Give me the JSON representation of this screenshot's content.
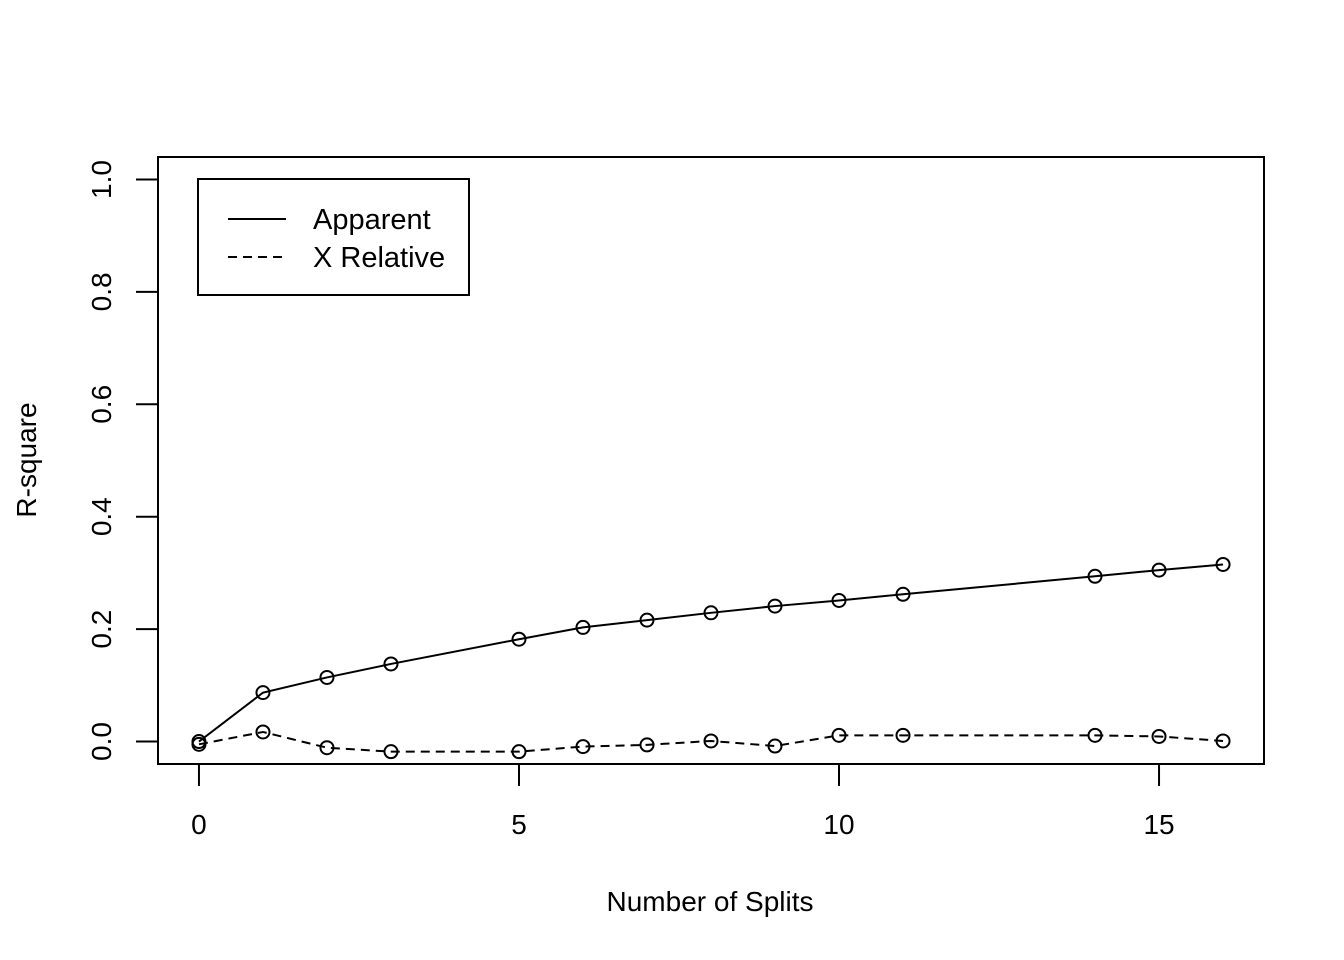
{
  "chart_data": {
    "type": "line",
    "title": "",
    "xlabel": "Number of Splits",
    "ylabel": "R-square",
    "xlim": [
      -0.64,
      16.64
    ],
    "ylim": [
      -0.04,
      1.04
    ],
    "x_ticks": [
      0,
      5,
      10,
      15
    ],
    "x_tick_labels": [
      "0",
      "5",
      "10",
      "15"
    ],
    "y_ticks": [
      0.0,
      0.2,
      0.4,
      0.6,
      0.8,
      1.0
    ],
    "y_tick_labels": [
      "0.0",
      "0.2",
      "0.4",
      "0.6",
      "0.8",
      "1.0"
    ],
    "grid": false,
    "legend": {
      "position": "top-left",
      "entries": [
        "Apparent",
        "X Relative"
      ]
    },
    "series": [
      {
        "name": "Apparent",
        "line_style": "solid",
        "marker": "open-circle",
        "x": [
          0,
          1,
          2,
          3,
          5,
          6,
          7,
          8,
          9,
          10,
          11,
          14,
          15,
          16
        ],
        "y": [
          0.0,
          0.087,
          0.114,
          0.138,
          0.182,
          0.203,
          0.216,
          0.229,
          0.241,
          0.251,
          0.262,
          0.294,
          0.305,
          0.315
        ]
      },
      {
        "name": "X Relative",
        "line_style": "dashed",
        "marker": "open-circle",
        "x": [
          0,
          1,
          2,
          3,
          5,
          6,
          7,
          8,
          9,
          10,
          11,
          14,
          15,
          16
        ],
        "y": [
          -0.005,
          0.017,
          -0.011,
          -0.018,
          -0.018,
          -0.009,
          -0.006,
          0.001,
          -0.008,
          0.011,
          0.011,
          0.011,
          0.009,
          0.001
        ]
      }
    ]
  }
}
